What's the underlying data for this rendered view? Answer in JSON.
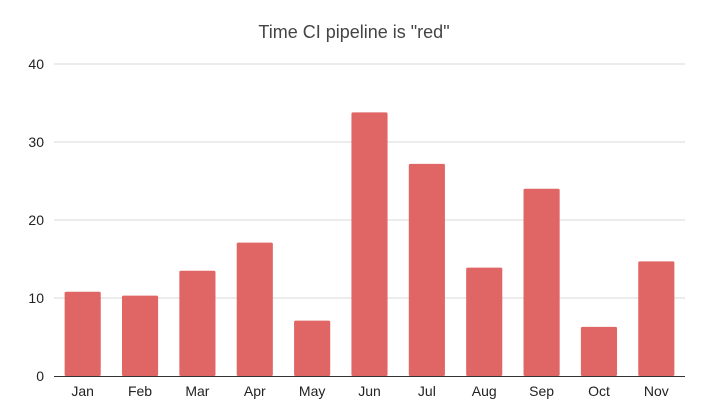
{
  "chart_data": {
    "type": "bar",
    "title": "Time CI pipeline is \"red\"",
    "xlabel": "",
    "ylabel": "",
    "categories": [
      "Jan",
      "Feb",
      "Mar",
      "Apr",
      "May",
      "Jun",
      "Jul",
      "Aug",
      "Sep",
      "Oct",
      "Nov"
    ],
    "values": [
      10.8,
      10.3,
      13.5,
      17.1,
      7.1,
      33.8,
      27.2,
      13.9,
      24.0,
      6.3,
      14.7
    ],
    "ylim": [
      0,
      40
    ],
    "yticks": [
      "0",
      "10",
      "20",
      "30",
      "40"
    ],
    "grid": true,
    "legend": "none",
    "bar_color": "#e06666"
  }
}
